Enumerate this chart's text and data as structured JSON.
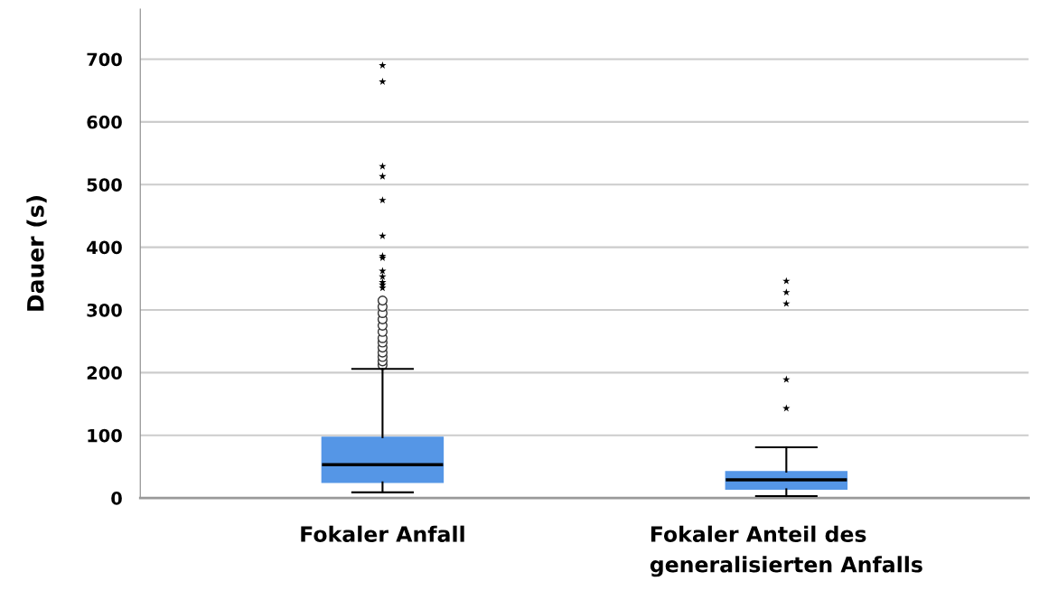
{
  "chart_data": {
    "type": "box",
    "ylabel": "Dauer (s)",
    "categories": [
      "Fokaler Anfall",
      "Fokaler Anteil des generalisierten Anfalls"
    ],
    "color": "#5596e6",
    "boxes": [
      {
        "low": 9,
        "q1": 25,
        "median": 53,
        "q3": 97,
        "high": 206,
        "outliers": [
          212,
          218,
          225,
          232,
          240,
          248,
          255,
          265,
          275,
          285,
          295,
          305,
          315
        ]
      },
      {
        "low": 3,
        "q1": 14,
        "median": 29,
        "q3": 42,
        "high": 81
      }
    ],
    "series": [
      {
        "type": "scatter",
        "marker": "star",
        "color": "#000000",
        "x": [
          "Fokaler Anfall",
          "Fokaler Anfall",
          "Fokaler Anfall",
          "Fokaler Anfall",
          "Fokaler Anfall",
          "Fokaler Anfall",
          "Fokaler Anfall",
          "Fokaler Anfall",
          "Fokaler Anfall",
          "Fokaler Anfall",
          "Fokaler Anfall",
          "Fokaler Anfall",
          "Fokaler Anfall",
          "Fokaler Anteil des generalisierten Anfalls",
          "Fokaler Anteil des generalisierten Anfalls",
          "Fokaler Anteil des generalisierten Anfalls",
          "Fokaler Anteil des generalisierten Anfalls",
          "Fokaler Anteil des generalisierten Anfalls"
        ],
        "values": [
          690,
          664,
          529,
          513,
          475,
          418,
          386,
          383,
          362,
          353,
          344,
          340,
          335,
          346,
          328,
          310,
          189,
          143
        ]
      }
    ],
    "ylim": [
      0,
      780
    ],
    "yticks": [
      0,
      100,
      200,
      300,
      400,
      500,
      600,
      700
    ],
    "grid": "y",
    "legend": false
  }
}
